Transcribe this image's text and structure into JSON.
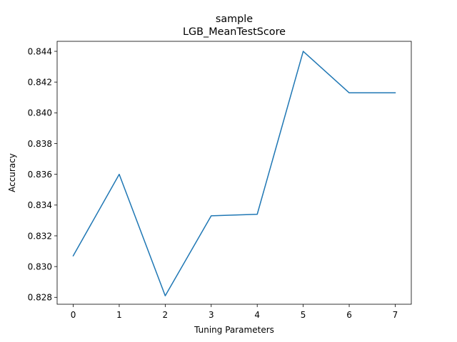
{
  "chart_data": {
    "type": "line",
    "title": "sample",
    "subtitle": "LGB_MeanTestScore",
    "xlabel": "Tuning Parameters",
    "ylabel": "Accuracy",
    "x": [
      0,
      1,
      2,
      3,
      4,
      5,
      6,
      7
    ],
    "series": [
      {
        "values": [
          0.8307,
          0.836,
          0.8281,
          0.8333,
          0.8334,
          0.844,
          0.8413,
          0.8413
        ],
        "color": "#1f77b4"
      }
    ],
    "xlim": [
      -0.35,
      7.35
    ],
    "ylim": [
      0.82755,
      0.84465
    ],
    "x_ticks": [
      0,
      1,
      2,
      3,
      4,
      5,
      6,
      7
    ],
    "x_tick_labels": [
      "0",
      "1",
      "2",
      "3",
      "4",
      "5",
      "6",
      "7"
    ],
    "y_ticks": [
      0.828,
      0.83,
      0.832,
      0.834,
      0.836,
      0.838,
      0.84,
      0.842,
      0.844
    ],
    "y_tick_labels": [
      "0.828",
      "0.830",
      "0.832",
      "0.834",
      "0.836",
      "0.838",
      "0.840",
      "0.842",
      "0.844"
    ],
    "grid": false,
    "legend": "none"
  }
}
